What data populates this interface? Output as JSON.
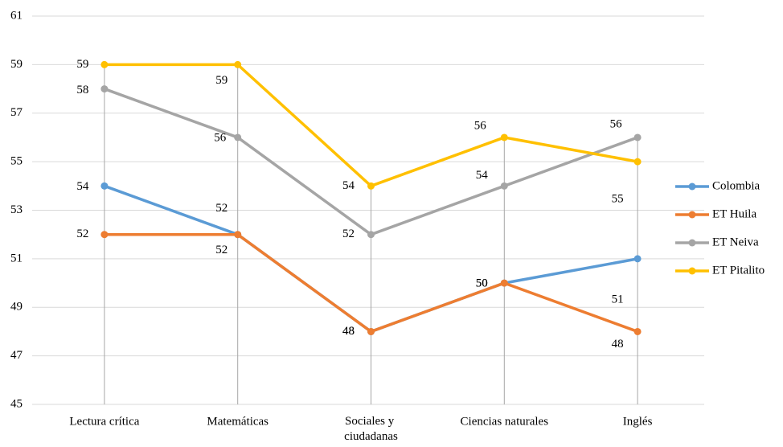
{
  "chart_data": {
    "type": "line",
    "categories": [
      "Lectura crítica",
      "Matemáticas",
      "Sociales y ciudadanas",
      "Ciencias naturales",
      "Inglés"
    ],
    "series": [
      {
        "name": "Colombia",
        "color": "#5b9bd5",
        "values": [
          54,
          52,
          48,
          50,
          51
        ]
      },
      {
        "name": "ET Huila",
        "color": "#ed7d31",
        "values": [
          52,
          52,
          48,
          50,
          48
        ]
      },
      {
        "name": "ET Neiva",
        "color": "#a5a5a5",
        "values": [
          58,
          56,
          52,
          54,
          56
        ]
      },
      {
        "name": "ET Pitalito",
        "color": "#ffc000",
        "values": [
          59,
          59,
          54,
          56,
          55
        ]
      }
    ],
    "ylim": [
      45,
      61
    ],
    "yticks": [
      45,
      47,
      49,
      51,
      53,
      55,
      57,
      59,
      61
    ],
    "grid": true,
    "drop_lines": true,
    "legend": "right"
  }
}
